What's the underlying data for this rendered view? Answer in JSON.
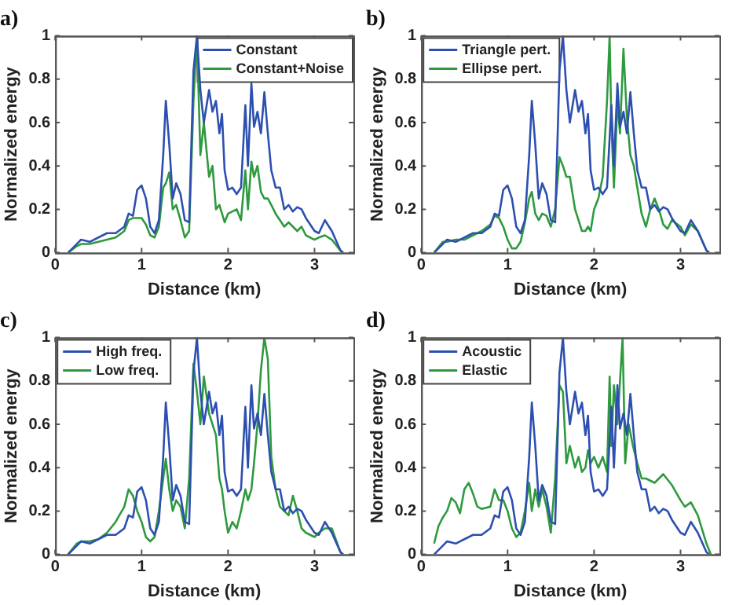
{
  "chart_data": [
    {
      "type": "line",
      "title": "a)",
      "xlabel": "Distance (km)",
      "ylabel": "Normalized energy",
      "xlim": [
        0,
        3.45
      ],
      "xticks": [
        0,
        1,
        2,
        3
      ],
      "ylim": [
        0,
        1
      ],
      "yticks": [
        0,
        0.2,
        0.4,
        0.6,
        0.8,
        1
      ],
      "grid": false,
      "legend": "top right",
      "series": [
        {
          "name": "Constant",
          "color": "#2d4fb0",
          "x": [
            0.15,
            0.25,
            0.3,
            0.4,
            0.5,
            0.6,
            0.7,
            0.8,
            0.85,
            0.9,
            0.95,
            1.0,
            1.05,
            1.1,
            1.15,
            1.2,
            1.25,
            1.28,
            1.32,
            1.36,
            1.4,
            1.45,
            1.5,
            1.55,
            1.6,
            1.64,
            1.68,
            1.72,
            1.78,
            1.82,
            1.86,
            1.9,
            1.93,
            1.96,
            2.0,
            2.05,
            2.1,
            2.15,
            2.2,
            2.23,
            2.27,
            2.3,
            2.34,
            2.38,
            2.42,
            2.46,
            2.5,
            2.55,
            2.6,
            2.65,
            2.7,
            2.75,
            2.8,
            2.85,
            2.9,
            3.0,
            3.05,
            3.12,
            3.2,
            3.3,
            3.33
          ],
          "values": [
            0,
            0.04,
            0.06,
            0.05,
            0.07,
            0.09,
            0.09,
            0.12,
            0.18,
            0.17,
            0.29,
            0.31,
            0.25,
            0.12,
            0.09,
            0.15,
            0.45,
            0.7,
            0.5,
            0.25,
            0.32,
            0.27,
            0.15,
            0.14,
            0.84,
            1.0,
            0.75,
            0.6,
            0.75,
            0.65,
            0.7,
            0.55,
            0.64,
            0.38,
            0.29,
            0.3,
            0.27,
            0.3,
            0.68,
            0.4,
            0.78,
            0.58,
            0.65,
            0.55,
            0.74,
            0.55,
            0.38,
            0.3,
            0.3,
            0.2,
            0.22,
            0.19,
            0.21,
            0.2,
            0.16,
            0.1,
            0.09,
            0.15,
            0.1,
            0.01,
            0
          ]
        },
        {
          "name": "Constant+Noise",
          "color": "#2e9a3e",
          "x": [
            0.15,
            0.25,
            0.3,
            0.4,
            0.5,
            0.6,
            0.7,
            0.8,
            0.85,
            0.9,
            0.95,
            1.0,
            1.05,
            1.1,
            1.15,
            1.2,
            1.25,
            1.28,
            1.32,
            1.36,
            1.4,
            1.45,
            1.5,
            1.55,
            1.6,
            1.64,
            1.68,
            1.72,
            1.78,
            1.82,
            1.86,
            1.9,
            1.93,
            1.96,
            2.0,
            2.05,
            2.1,
            2.15,
            2.2,
            2.23,
            2.27,
            2.3,
            2.34,
            2.38,
            2.42,
            2.46,
            2.5,
            2.55,
            2.6,
            2.65,
            2.7,
            2.75,
            2.8,
            2.85,
            2.9,
            3.0,
            3.05,
            3.12,
            3.2,
            3.3,
            3.33
          ],
          "values": [
            0,
            0.03,
            0.04,
            0.04,
            0.05,
            0.06,
            0.07,
            0.1,
            0.15,
            0.16,
            0.16,
            0.16,
            0.13,
            0.08,
            0.07,
            0.12,
            0.3,
            0.32,
            0.37,
            0.2,
            0.22,
            0.15,
            0.07,
            0.1,
            0.7,
            1.0,
            0.45,
            0.6,
            0.35,
            0.4,
            0.2,
            0.22,
            0.18,
            0.14,
            0.18,
            0.19,
            0.2,
            0.15,
            0.38,
            0.2,
            0.42,
            0.35,
            0.4,
            0.28,
            0.25,
            0.25,
            0.22,
            0.18,
            0.15,
            0.12,
            0.14,
            0.12,
            0.1,
            0.12,
            0.08,
            0.06,
            0.07,
            0.08,
            0.06,
            0.01,
            0
          ]
        }
      ]
    },
    {
      "type": "line",
      "title": "b)",
      "xlabel": "Distance (km)",
      "ylabel": "Normalized energy",
      "xlim": [
        0,
        3.45
      ],
      "xticks": [
        0,
        1,
        2,
        3
      ],
      "ylim": [
        0,
        1
      ],
      "yticks": [
        0,
        0.2,
        0.4,
        0.6,
        0.8,
        1
      ],
      "grid": false,
      "legend": "top left",
      "series": [
        {
          "name": "Triangle pert.",
          "color": "#2d4fb0",
          "x": [
            0.15,
            0.25,
            0.3,
            0.4,
            0.5,
            0.6,
            0.7,
            0.8,
            0.85,
            0.9,
            0.95,
            1.0,
            1.05,
            1.1,
            1.15,
            1.2,
            1.25,
            1.28,
            1.32,
            1.36,
            1.4,
            1.45,
            1.5,
            1.55,
            1.6,
            1.64,
            1.68,
            1.72,
            1.78,
            1.82,
            1.86,
            1.9,
            1.93,
            1.96,
            2.0,
            2.05,
            2.1,
            2.15,
            2.2,
            2.23,
            2.27,
            2.3,
            2.34,
            2.38,
            2.42,
            2.46,
            2.5,
            2.55,
            2.6,
            2.65,
            2.7,
            2.75,
            2.8,
            2.85,
            2.9,
            3.0,
            3.05,
            3.12,
            3.2,
            3.3,
            3.33
          ],
          "values": [
            0,
            0.04,
            0.06,
            0.05,
            0.07,
            0.09,
            0.09,
            0.12,
            0.18,
            0.17,
            0.29,
            0.31,
            0.25,
            0.12,
            0.09,
            0.15,
            0.45,
            0.7,
            0.5,
            0.25,
            0.32,
            0.27,
            0.15,
            0.14,
            0.84,
            1.0,
            0.75,
            0.6,
            0.75,
            0.65,
            0.7,
            0.55,
            0.64,
            0.38,
            0.29,
            0.3,
            0.27,
            0.3,
            0.68,
            0.4,
            0.78,
            0.58,
            0.65,
            0.55,
            0.74,
            0.55,
            0.38,
            0.3,
            0.3,
            0.2,
            0.22,
            0.19,
            0.21,
            0.2,
            0.16,
            0.1,
            0.09,
            0.15,
            0.1,
            0.01,
            0
          ]
        },
        {
          "name": "Ellipse pert.",
          "color": "#2e9a3e",
          "x": [
            0.15,
            0.25,
            0.3,
            0.4,
            0.5,
            0.6,
            0.7,
            0.8,
            0.85,
            0.9,
            0.95,
            1.0,
            1.05,
            1.1,
            1.15,
            1.2,
            1.25,
            1.28,
            1.32,
            1.36,
            1.4,
            1.45,
            1.5,
            1.55,
            1.6,
            1.64,
            1.68,
            1.72,
            1.78,
            1.82,
            1.86,
            1.9,
            1.93,
            1.96,
            2.0,
            2.05,
            2.1,
            2.15,
            2.18,
            2.2,
            2.23,
            2.27,
            2.3,
            2.34,
            2.38,
            2.42,
            2.46,
            2.5,
            2.55,
            2.6,
            2.65,
            2.7,
            2.75,
            2.8,
            2.85,
            2.9,
            3.0,
            3.05,
            3.12,
            3.2,
            3.3,
            3.33
          ],
          "values": [
            0,
            0.05,
            0.05,
            0.06,
            0.06,
            0.08,
            0.1,
            0.13,
            0.17,
            0.16,
            0.12,
            0.06,
            0.02,
            0.02,
            0.05,
            0.14,
            0.25,
            0.28,
            0.18,
            0.15,
            0.18,
            0.17,
            0.12,
            0.2,
            0.44,
            0.4,
            0.35,
            0.35,
            0.2,
            0.15,
            0.1,
            0.1,
            0.12,
            0.1,
            0.2,
            0.25,
            0.35,
            0.7,
            1.0,
            0.6,
            0.3,
            0.7,
            0.55,
            0.94,
            0.62,
            0.45,
            0.4,
            0.3,
            0.18,
            0.12,
            0.2,
            0.25,
            0.2,
            0.13,
            0.11,
            0.15,
            0.12,
            0.08,
            0.13,
            0.1,
            0.01,
            0
          ]
        }
      ]
    },
    {
      "type": "line",
      "title": "c)",
      "xlabel": "Distance (km)",
      "ylabel": "Normalized energy",
      "xlim": [
        0,
        3.45
      ],
      "xticks": [
        0,
        1,
        2,
        3
      ],
      "ylim": [
        0,
        1
      ],
      "yticks": [
        0,
        0.2,
        0.4,
        0.6,
        0.8,
        1
      ],
      "grid": false,
      "legend": "top left",
      "series": [
        {
          "name": "High freq.",
          "color": "#2d4fb0",
          "x": [
            0.15,
            0.25,
            0.3,
            0.4,
            0.5,
            0.6,
            0.7,
            0.8,
            0.85,
            0.9,
            0.95,
            1.0,
            1.05,
            1.1,
            1.15,
            1.2,
            1.25,
            1.28,
            1.32,
            1.36,
            1.4,
            1.45,
            1.5,
            1.55,
            1.6,
            1.64,
            1.68,
            1.72,
            1.78,
            1.82,
            1.86,
            1.9,
            1.93,
            1.96,
            2.0,
            2.05,
            2.1,
            2.15,
            2.2,
            2.23,
            2.27,
            2.3,
            2.34,
            2.38,
            2.42,
            2.46,
            2.5,
            2.55,
            2.6,
            2.65,
            2.7,
            2.75,
            2.8,
            2.85,
            2.9,
            3.0,
            3.05,
            3.12,
            3.2,
            3.3,
            3.33
          ],
          "values": [
            0,
            0.04,
            0.06,
            0.05,
            0.07,
            0.09,
            0.09,
            0.12,
            0.18,
            0.17,
            0.29,
            0.31,
            0.25,
            0.12,
            0.09,
            0.15,
            0.45,
            0.7,
            0.5,
            0.25,
            0.32,
            0.27,
            0.15,
            0.14,
            0.84,
            1.0,
            0.75,
            0.6,
            0.75,
            0.65,
            0.7,
            0.55,
            0.64,
            0.38,
            0.29,
            0.3,
            0.27,
            0.3,
            0.68,
            0.4,
            0.78,
            0.58,
            0.65,
            0.55,
            0.74,
            0.55,
            0.38,
            0.3,
            0.3,
            0.2,
            0.22,
            0.19,
            0.21,
            0.2,
            0.16,
            0.1,
            0.09,
            0.15,
            0.1,
            0.01,
            0
          ]
        },
        {
          "name": "Low freq.",
          "color": "#2e9a3e",
          "x": [
            0.15,
            0.25,
            0.3,
            0.4,
            0.5,
            0.6,
            0.7,
            0.8,
            0.85,
            0.9,
            0.95,
            1.0,
            1.05,
            1.1,
            1.15,
            1.2,
            1.25,
            1.28,
            1.32,
            1.36,
            1.4,
            1.45,
            1.5,
            1.55,
            1.6,
            1.64,
            1.68,
            1.72,
            1.78,
            1.82,
            1.86,
            1.9,
            1.93,
            1.96,
            2.0,
            2.05,
            2.1,
            2.15,
            2.2,
            2.23,
            2.27,
            2.3,
            2.34,
            2.38,
            2.42,
            2.46,
            2.5,
            2.55,
            2.6,
            2.65,
            2.7,
            2.75,
            2.8,
            2.85,
            2.9,
            3.0,
            3.05,
            3.12,
            3.2,
            3.3,
            3.33
          ],
          "values": [
            0,
            0.05,
            0.06,
            0.06,
            0.07,
            0.1,
            0.15,
            0.22,
            0.3,
            0.27,
            0.2,
            0.15,
            0.08,
            0.06,
            0.08,
            0.2,
            0.35,
            0.44,
            0.3,
            0.2,
            0.25,
            0.22,
            0.12,
            0.35,
            0.88,
            0.75,
            0.6,
            0.82,
            0.65,
            0.6,
            0.55,
            0.35,
            0.3,
            0.2,
            0.1,
            0.15,
            0.12,
            0.2,
            0.3,
            0.25,
            0.3,
            0.42,
            0.6,
            0.85,
            1.0,
            0.9,
            0.45,
            0.3,
            0.22,
            0.2,
            0.18,
            0.27,
            0.2,
            0.12,
            0.1,
            0.08,
            0.1,
            0.12,
            0.12,
            0.01,
            0
          ]
        }
      ]
    },
    {
      "type": "line",
      "title": "d)",
      "xlabel": "Distance (km)",
      "ylabel": "Normalized energy",
      "xlim": [
        0,
        3.45
      ],
      "xticks": [
        0,
        1,
        2,
        3
      ],
      "ylim": [
        0,
        1
      ],
      "yticks": [
        0,
        0.2,
        0.4,
        0.6,
        0.8,
        1
      ],
      "grid": false,
      "legend": "top left",
      "series": [
        {
          "name": "Acoustic",
          "color": "#2d4fb0",
          "x": [
            0.15,
            0.25,
            0.3,
            0.4,
            0.5,
            0.6,
            0.7,
            0.8,
            0.85,
            0.9,
            0.95,
            1.0,
            1.05,
            1.1,
            1.15,
            1.2,
            1.25,
            1.28,
            1.32,
            1.36,
            1.4,
            1.45,
            1.5,
            1.55,
            1.6,
            1.64,
            1.68,
            1.72,
            1.78,
            1.82,
            1.86,
            1.9,
            1.93,
            1.96,
            2.0,
            2.05,
            2.1,
            2.15,
            2.2,
            2.23,
            2.27,
            2.3,
            2.34,
            2.38,
            2.42,
            2.46,
            2.5,
            2.55,
            2.6,
            2.65,
            2.7,
            2.75,
            2.8,
            2.85,
            2.9,
            3.0,
            3.05,
            3.12,
            3.2,
            3.3,
            3.33
          ],
          "values": [
            0,
            0.04,
            0.06,
            0.05,
            0.07,
            0.09,
            0.09,
            0.12,
            0.18,
            0.17,
            0.29,
            0.31,
            0.25,
            0.12,
            0.09,
            0.15,
            0.45,
            0.7,
            0.5,
            0.25,
            0.32,
            0.27,
            0.15,
            0.14,
            0.84,
            1.0,
            0.75,
            0.6,
            0.75,
            0.65,
            0.7,
            0.55,
            0.64,
            0.38,
            0.29,
            0.3,
            0.27,
            0.3,
            0.68,
            0.4,
            0.78,
            0.58,
            0.65,
            0.55,
            0.74,
            0.55,
            0.38,
            0.3,
            0.3,
            0.2,
            0.22,
            0.19,
            0.21,
            0.2,
            0.16,
            0.1,
            0.09,
            0.15,
            0.1,
            0.01,
            0
          ]
        },
        {
          "name": "Elastic",
          "color": "#2e9a3e",
          "x": [
            0.15,
            0.2,
            0.25,
            0.3,
            0.35,
            0.4,
            0.45,
            0.5,
            0.55,
            0.6,
            0.65,
            0.7,
            0.8,
            0.85,
            0.9,
            0.95,
            1.0,
            1.05,
            1.1,
            1.15,
            1.2,
            1.25,
            1.28,
            1.32,
            1.36,
            1.4,
            1.45,
            1.5,
            1.55,
            1.6,
            1.64,
            1.68,
            1.72,
            1.78,
            1.82,
            1.86,
            1.9,
            1.93,
            1.96,
            2.0,
            2.05,
            2.1,
            2.15,
            2.18,
            2.2,
            2.23,
            2.27,
            2.3,
            2.33,
            2.36,
            2.4,
            2.45,
            2.5,
            2.55,
            2.6,
            2.7,
            2.8,
            2.9,
            3.0,
            3.05,
            3.12,
            3.2,
            3.3,
            3.35
          ],
          "values": [
            0.05,
            0.13,
            0.17,
            0.2,
            0.26,
            0.24,
            0.19,
            0.3,
            0.33,
            0.28,
            0.22,
            0.21,
            0.22,
            0.3,
            0.25,
            0.25,
            0.2,
            0.12,
            0.08,
            0.1,
            0.2,
            0.33,
            0.2,
            0.3,
            0.22,
            0.3,
            0.22,
            0.1,
            0.35,
            0.78,
            0.75,
            0.42,
            0.5,
            0.4,
            0.45,
            0.38,
            0.4,
            0.48,
            0.42,
            0.45,
            0.4,
            0.45,
            0.38,
            0.82,
            0.5,
            0.78,
            0.6,
            0.8,
            1.0,
            0.42,
            0.6,
            0.5,
            0.42,
            0.35,
            0.35,
            0.33,
            0.37,
            0.32,
            0.25,
            0.22,
            0.24,
            0.18,
            0.05,
            0
          ]
        }
      ]
    }
  ]
}
